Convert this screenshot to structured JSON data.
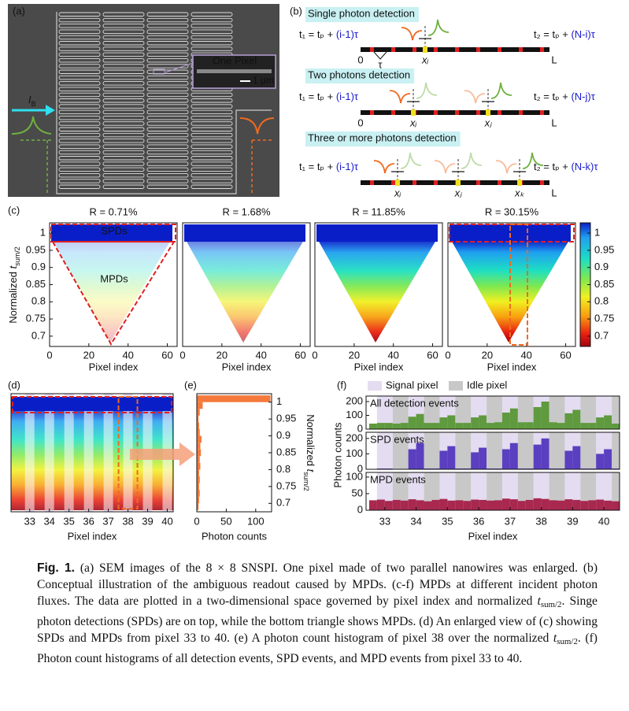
{
  "panel_a": {
    "label": "(a)",
    "inset_label": "One Pixel",
    "scale_bar": "1 μm",
    "bias_label": [
      "I",
      "B"
    ]
  },
  "panel_b": {
    "label": "(b)",
    "rows": [
      {
        "title": "Single photon detection",
        "t1": [
          "t₁ = tₚ + ",
          "(i-1)τ"
        ],
        "t2": [
          "t₂ = tₚ + ",
          "(N-i)τ"
        ],
        "start": "0",
        "end": "L",
        "tau": "τ",
        "positions": [
          "xᵢ"
        ]
      },
      {
        "title": "Two photons detection",
        "t1": [
          "t₁ = tₚ + ",
          "(i-1)τ"
        ],
        "t2": [
          "t₂ = tₚ + ",
          "(N-j)τ"
        ],
        "start": "0",
        "end": "L",
        "positions": [
          "xᵢ",
          "xⱼ"
        ]
      },
      {
        "title": "Three or more photons detection",
        "t1": [
          "t₁ = tₚ + ",
          "(i-1)τ"
        ],
        "t2": [
          "t₂ = tₚ + ",
          "(N-k)τ"
        ],
        "end": "L",
        "positions": [
          "xᵢ",
          "xⱼ",
          "xₖ"
        ]
      }
    ]
  },
  "panel_c": {
    "type": "scatter",
    "label": "(c)",
    "ylabel": [
      "Normalized ",
      "t",
      "sum/2"
    ],
    "xlabel": "Pixel index",
    "xlim": [
      0,
      65
    ],
    "xticks": [
      0,
      20,
      40,
      60
    ],
    "ylim": [
      0.67,
      1.03
    ],
    "yticks": [
      1,
      0.95,
      0.9,
      0.85,
      0.8,
      0.75,
      0.7
    ],
    "subplots": [
      {
        "title": "R = 0.71%"
      },
      {
        "title": "R = 1.68%"
      },
      {
        "title": "R = 11.85%"
      },
      {
        "title": "R = 30.15%"
      }
    ],
    "annotations": [
      "SPDs",
      "MPDs"
    ],
    "colorbar": {
      "lim": [
        0.67,
        1.03
      ],
      "ticks": [
        1,
        0.95,
        0.9,
        0.85,
        0.8,
        0.75,
        0.7
      ]
    }
  },
  "panel_d": {
    "type": "scatter",
    "label": "(d)",
    "xlabel": "Pixel index",
    "xlim": [
      32.05,
      40.3
    ],
    "xticks": [
      33,
      34,
      35,
      36,
      37,
      38,
      39,
      40
    ]
  },
  "panel_e": {
    "type": "histogram",
    "label": "(e)",
    "xlabel": "Photon counts",
    "ylabel": [
      "Normalized ",
      "t",
      "sum/2"
    ],
    "color": "#f4793b",
    "xlim": [
      0,
      127
    ],
    "xticks": [
      0,
      50,
      100
    ],
    "ylim": [
      0.675,
      1.025
    ],
    "yticks": [
      1,
      0.95,
      0.9,
      0.85,
      0.8,
      0.75,
      0.7
    ],
    "bins": [
      0.68,
      0.7,
      0.72,
      0.74,
      0.76,
      0.78,
      0.8,
      0.82,
      0.84,
      0.86,
      0.88,
      0.9,
      0.92,
      0.94,
      0.96,
      0.98,
      1.0,
      1.02
    ],
    "values": [
      3,
      4,
      5,
      4,
      5,
      4,
      6,
      5,
      7,
      6,
      8,
      5,
      4,
      3,
      5,
      10,
      125
    ]
  },
  "panel_f": {
    "type": "histogram",
    "label": "(f)",
    "legend": [
      "Signal pixel",
      "Idle pixel"
    ],
    "ylabel": "Photon counts",
    "xlabel": "Pixel index",
    "xlim": [
      32.4,
      40.5
    ],
    "xticks": [
      33,
      34,
      35,
      36,
      37,
      38,
      39,
      40
    ],
    "bins": [
      32.5,
      32.75,
      33,
      33.25,
      33.5,
      33.75,
      34,
      34.25,
      34.5,
      34.75,
      35,
      35.25,
      35.5,
      35.75,
      36,
      36.25,
      36.5,
      36.75,
      37,
      37.25,
      37.5,
      37.75,
      38,
      38.25,
      38.5,
      38.75,
      39,
      39.25,
      39.5,
      39.75,
      40,
      40.25,
      40.5
    ],
    "series": [
      {
        "name": "All detection events",
        "color": "#5f9a3e",
        "ylim": [
          0,
          240
        ],
        "yticks": [
          0,
          100,
          200
        ],
        "values": [
          40,
          45,
          45,
          40,
          45,
          90,
          110,
          45,
          45,
          85,
          100,
          45,
          45,
          85,
          100,
          45,
          50,
          120,
          150,
          50,
          50,
          160,
          200,
          50,
          45,
          115,
          140,
          45,
          45,
          85,
          100,
          40
        ]
      },
      {
        "name": "SPD events",
        "color": "#5a3fc0",
        "ylim": [
          0,
          240
        ],
        "yticks": [
          0,
          100,
          200
        ],
        "values": [
          0,
          5,
          5,
          0,
          0,
          130,
          170,
          5,
          5,
          120,
          150,
          5,
          5,
          110,
          140,
          5,
          5,
          130,
          170,
          5,
          5,
          160,
          200,
          5,
          5,
          120,
          150,
          5,
          5,
          100,
          130,
          5
        ]
      },
      {
        "name": "MPD events",
        "color": "#a8284f",
        "ylim": [
          0,
          114
        ],
        "yticks": [
          0,
          50,
          100
        ],
        "values": [
          30,
          32,
          28,
          31,
          29,
          33,
          30,
          27,
          31,
          34,
          29,
          30,
          28,
          32,
          31,
          29,
          30,
          35,
          33,
          28,
          31,
          36,
          34,
          30,
          29,
          33,
          31,
          28,
          30,
          32,
          29,
          27
        ]
      }
    ]
  },
  "caption": {
    "label": "Fig. 1.",
    "segments": [
      "(a) SEM images of the 8 × 8 SNSPI. One pixel made of two parallel nanowires was enlarged. (b) Conceptual illustration of the ambiguous readout caused by MPDs. (c-f) MPDs at different incident photon fluxes. The data are plotted in a two-dimensional space governed by pixel index and normalized ",
      "t",
      "sum/2",
      ". Singe photon detections (SPDs) are on top, while the bottom triangle shows MPDs. (d) An enlarged view of (c) showing SPDs and MPDs from pixel 33 to 40. (e) A photon count histogram of pixel 38 over the normalized ",
      "t",
      "sum/2",
      ". (f) Photon count histograms of all detection events, SPD events, and MPD events from pixel 33 to 40."
    ]
  }
}
